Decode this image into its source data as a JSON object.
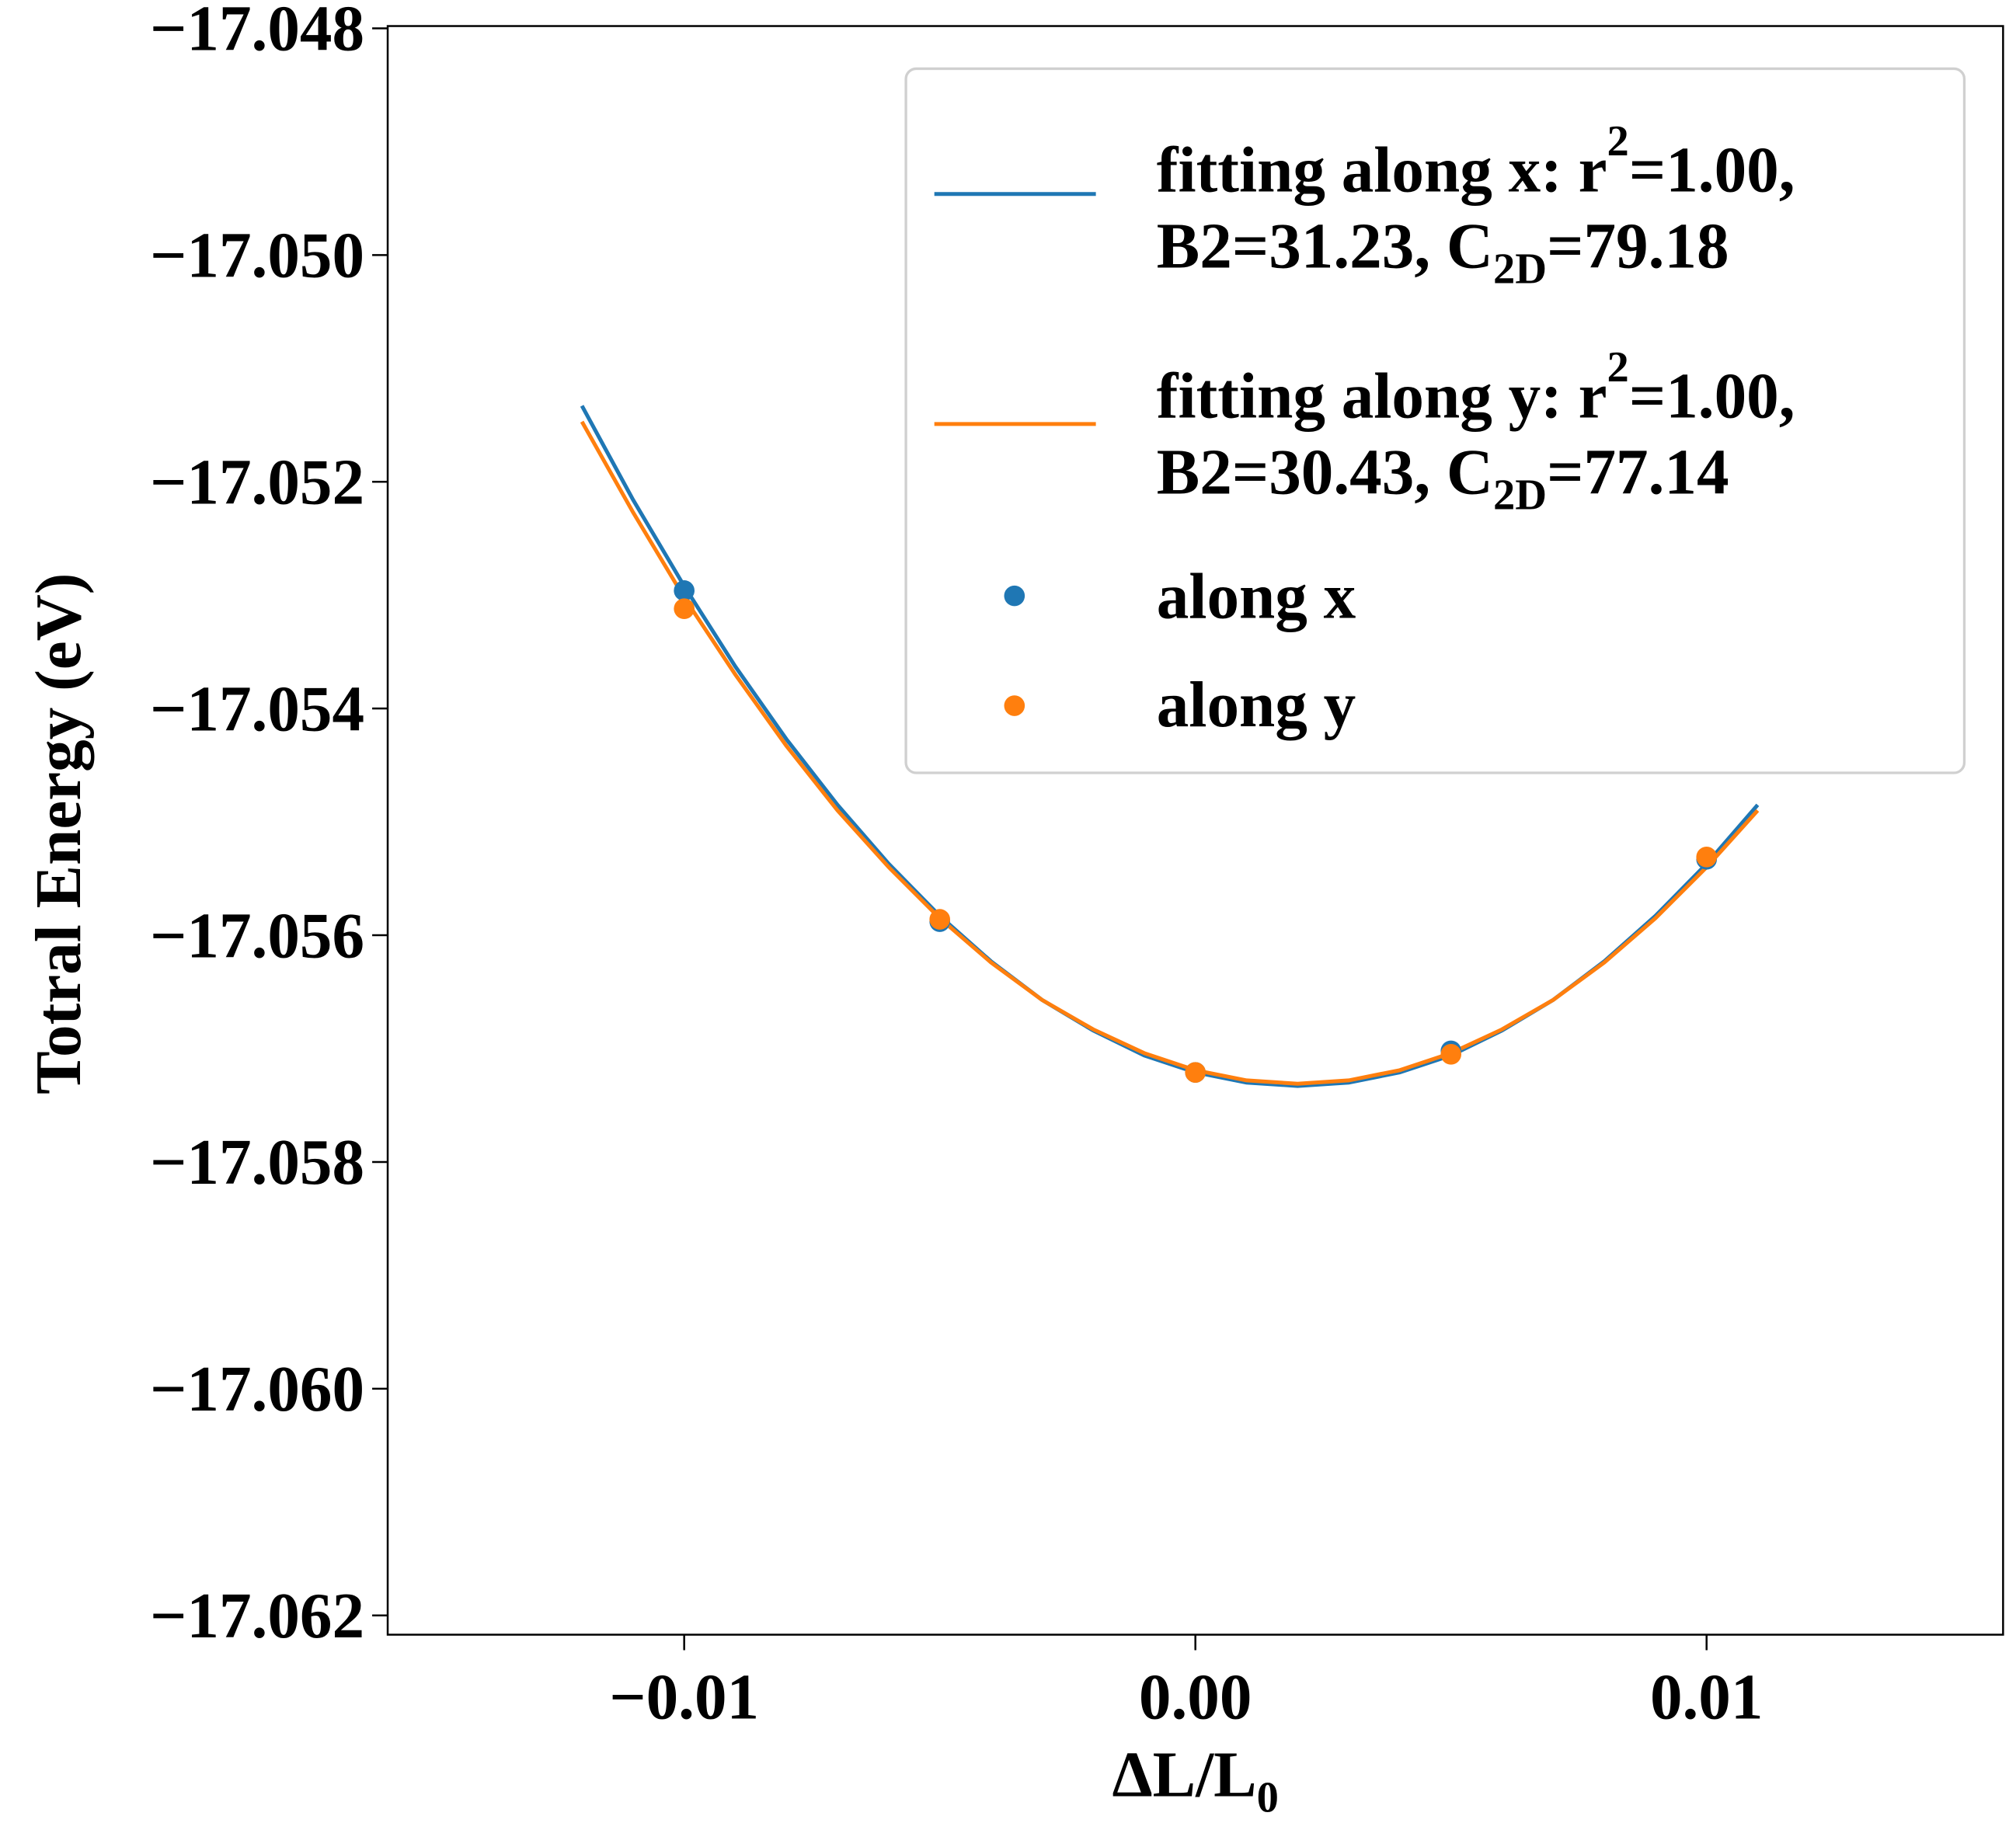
{
  "chart_data": {
    "type": "line",
    "xlabel": "ΔL/L",
    "xlabel_sub": "0",
    "ylabel": "Totral Energy (eV)",
    "xlim": [
      -0.0158,
      0.0158
    ],
    "ylim": [
      -17.06217,
      -17.04798
    ],
    "xticks": [
      -0.01,
      0.0,
      0.01
    ],
    "xtick_labels": [
      "−0.01",
      "0.00",
      "0.01"
    ],
    "yticks": [
      -17.048,
      -17.05,
      -17.052,
      -17.054,
      -17.056,
      -17.058,
      -17.06,
      -17.062
    ],
    "ytick_labels": [
      "−17.048",
      "−17.050",
      "−17.052",
      "−17.054",
      "−17.056",
      "−17.058",
      "−17.060",
      "−17.062"
    ],
    "grid": false,
    "legend_position": "top-right",
    "series": [
      {
        "name": "fitting along x",
        "kind": "line",
        "color": "#1f77b4",
        "legend": {
          "line1_a": "fitting along x: r",
          "line1_sup": "2",
          "line1_b": "=1.00,",
          "line2_a": "B2=31.23, C",
          "line2_sub": "2D",
          "line2_b": "=79.18"
        },
        "x": [
          -0.012,
          -0.011,
          -0.01,
          -0.009,
          -0.008,
          -0.007,
          -0.006,
          -0.005,
          -0.004,
          -0.003,
          -0.002,
          -0.001,
          0.0,
          0.001,
          0.002,
          0.003,
          0.004,
          0.005,
          0.006,
          0.007,
          0.008,
          0.009,
          0.01,
          0.011
        ],
        "y": [
          -17.05133,
          -17.05216,
          -17.05292,
          -17.05363,
          -17.05427,
          -17.05485,
          -17.05537,
          -17.05583,
          -17.05623,
          -17.05657,
          -17.05684,
          -17.05706,
          -17.05721,
          -17.0573,
          -17.05733,
          -17.0573,
          -17.05721,
          -17.05706,
          -17.05684,
          -17.05657,
          -17.05623,
          -17.05583,
          -17.05537,
          -17.05485
        ]
      },
      {
        "name": "fitting along y",
        "kind": "line",
        "color": "#ff7f0e",
        "legend": {
          "line1_a": "fitting along y: r",
          "line1_sup": "2",
          "line1_b": "=1.00,",
          "line2_a": "B2=30.43, C",
          "line2_sub": "2D",
          "line2_b": "=77.14"
        },
        "x": [
          -0.012,
          -0.011,
          -0.01,
          -0.009,
          -0.008,
          -0.007,
          -0.006,
          -0.005,
          -0.004,
          -0.003,
          -0.002,
          -0.001,
          0.0,
          0.001,
          0.002,
          0.003,
          0.004,
          0.005,
          0.006,
          0.007,
          0.008,
          0.009,
          0.01,
          0.011
        ],
        "y": [
          -17.05147,
          -17.05227,
          -17.05302,
          -17.0537,
          -17.05433,
          -17.0549,
          -17.0554,
          -17.05585,
          -17.05624,
          -17.05657,
          -17.05683,
          -17.05704,
          -17.05719,
          -17.05728,
          -17.05731,
          -17.05728,
          -17.05719,
          -17.05704,
          -17.05683,
          -17.05657,
          -17.05624,
          -17.05585,
          -17.0554,
          -17.0549
        ]
      },
      {
        "name": "along x",
        "kind": "scatter",
        "color": "#1f77b4",
        "x": [
          -0.01,
          -0.005,
          0.0,
          0.005,
          0.01
        ],
        "y": [
          -17.05296,
          -17.05588,
          -17.05721,
          -17.05702,
          -17.05533
        ]
      },
      {
        "name": "along y",
        "kind": "scatter",
        "color": "#ff7f0e",
        "x": [
          -0.01,
          -0.005,
          0.0,
          0.005,
          0.01
        ],
        "y": [
          -17.05312,
          -17.05586,
          -17.05721,
          -17.05705,
          -17.05531
        ]
      }
    ]
  }
}
